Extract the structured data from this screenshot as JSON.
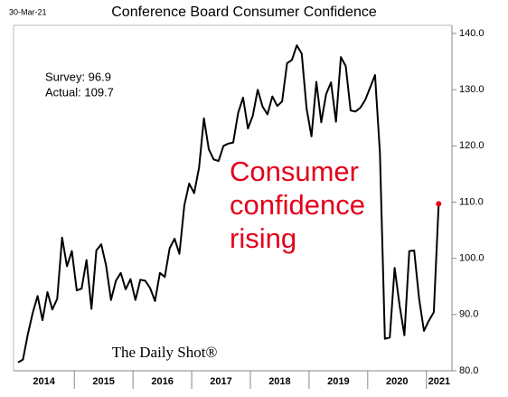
{
  "chart_data": {
    "type": "line",
    "title": "Conference Board Consumer Confidence",
    "date": "30-Mar-21",
    "source": "The Daily Shot®",
    "annotations": [
      "Survey: 96.9",
      "Actual:  109.7"
    ],
    "callout": [
      "Consumer",
      "confidence",
      "rising"
    ],
    "year_labels": [
      "2014",
      "2015",
      "2016",
      "2017",
      "2018",
      "2019",
      "2020",
      "2021"
    ],
    "series": [
      {
        "name": "Consumer Confidence",
        "color": "#000000",
        "values": [
          81.5,
          82.0,
          86.5,
          90.3,
          93.3,
          89.0,
          94.0,
          90.9,
          92.8,
          103.7,
          98.6,
          101.3,
          94.3,
          94.6,
          99.7,
          91.0,
          101.4,
          102.5,
          98.7,
          92.6,
          96.0,
          97.4,
          94.5,
          96.3,
          92.6,
          96.2,
          96.0,
          94.7,
          92.4,
          97.4,
          96.7,
          101.8,
          103.5,
          100.8,
          109.4,
          113.3,
          111.6,
          116.1,
          124.9,
          119.4,
          117.6,
          117.3,
          120.0,
          120.4,
          120.6,
          125.9,
          128.6,
          123.1,
          125.4,
          130.0,
          127.0,
          125.6,
          128.8,
          127.1,
          127.9,
          134.7,
          135.3,
          137.9,
          136.4,
          126.6,
          121.7,
          131.4,
          124.2,
          129.2,
          131.3,
          124.3,
          135.8,
          134.2,
          126.3,
          126.1,
          126.8,
          128.2,
          130.4,
          132.6,
          118.8,
          85.7,
          85.9,
          98.3,
          91.7,
          86.3,
          101.3,
          101.4,
          92.9,
          87.1,
          88.9,
          90.4,
          109.7
        ]
      }
    ],
    "highlight_color": "#e3001b",
    "ylim": [
      80,
      140
    ],
    "yticks": [
      {
        "value": 80,
        "label": "80.0"
      },
      {
        "value": 90,
        "label": "90.0"
      },
      {
        "value": 100,
        "label": "100.0"
      },
      {
        "value": 110,
        "label": "110.0"
      },
      {
        "value": 120,
        "label": "120.0"
      },
      {
        "value": 130,
        "label": "130.0"
      },
      {
        "value": 140,
        "label": "140.0"
      }
    ]
  }
}
